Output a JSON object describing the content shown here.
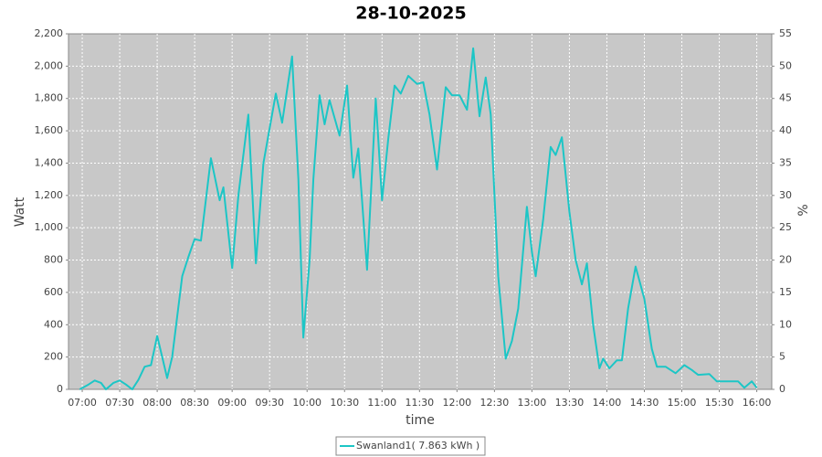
{
  "chart_data": {
    "type": "line",
    "title": "28-10-2025",
    "x_label": "time",
    "y_label": "Watt",
    "y2_label": "%",
    "xlim": [
      "06:49",
      "16:12"
    ],
    "xticks": [
      "07:00",
      "07:30",
      "08:00",
      "08:30",
      "09:00",
      "09:30",
      "10:00",
      "10:30",
      "11:00",
      "11:30",
      "12:00",
      "12:30",
      "13:00",
      "13:30",
      "14:00",
      "14:30",
      "15:00",
      "15:30",
      "16:00"
    ],
    "ylim": [
      0,
      2200
    ],
    "yticks": [
      0,
      200,
      400,
      600,
      800,
      {
        "value": 1000,
        "label": "1,000"
      },
      {
        "value": 1200,
        "label": "1,200"
      },
      {
        "value": 1400,
        "label": "1,400"
      },
      {
        "value": 1600,
        "label": "1,600"
      },
      {
        "value": 1800,
        "label": "1,800"
      },
      {
        "value": 2000,
        "label": "2,000"
      },
      {
        "value": 2200,
        "label": "2,200"
      }
    ],
    "y2lim": [
      0,
      55
    ],
    "y2ticks": [
      0,
      5,
      10,
      15,
      20,
      25,
      30,
      35,
      40,
      45,
      50,
      55
    ],
    "grid": true,
    "legend": "bottom",
    "x": [
      "06:58",
      "07:05",
      "07:10",
      "07:15",
      "07:19",
      "07:25",
      "07:30",
      "07:35",
      "07:40",
      "07:45",
      "07:50",
      "07:55",
      "08:00",
      "08:04",
      "08:08",
      "08:12",
      "08:16",
      "08:20",
      "08:25",
      "08:30",
      "08:35",
      "08:43",
      "08:50",
      "08:53",
      "09:00",
      "09:05",
      "09:13",
      "09:19",
      "09:25",
      "09:35",
      "09:40",
      "09:48",
      "09:53",
      "09:57",
      "10:02",
      "10:05",
      "10:10",
      "10:14",
      "10:18",
      "10:26",
      "10:32",
      "10:37",
      "10:41",
      "10:48",
      "10:55",
      "11:00",
      "11:05",
      "11:10",
      "11:15",
      "11:21",
      "11:28",
      "11:33",
      "11:38",
      "11:44",
      "11:51",
      "11:56",
      "12:02",
      "12:08",
      "12:13",
      "12:18",
      "12:23",
      "12:27",
      "12:33",
      "12:39",
      "12:44",
      "12:49",
      "12:56",
      "13:00",
      "13:03",
      "13:09",
      "13:15",
      "13:19",
      "13:24",
      "13:30",
      "13:35",
      "13:40",
      "13:44",
      "13:49",
      "13:54",
      "13:57",
      "14:02",
      "14:08",
      "14:12",
      "14:17",
      "14:23",
      "14:30",
      "14:36",
      "14:40",
      "14:47",
      "14:55",
      "15:02",
      "15:08",
      "15:13",
      "15:22",
      "15:28",
      "15:38",
      "15:45",
      "15:50",
      "15:56",
      "16:00"
    ],
    "series": [
      {
        "name": "Swanland1( 7.863 kWh )",
        "color": "#1cc6c6",
        "values": [
          0,
          30,
          55,
          40,
          0,
          40,
          55,
          30,
          0,
          60,
          140,
          150,
          330,
          200,
          70,
          200,
          450,
          700,
          820,
          930,
          920,
          1430,
          1170,
          1250,
          750,
          1200,
          1700,
          780,
          1400,
          1830,
          1650,
          2060,
          1300,
          320,
          800,
          1300,
          1820,
          1640,
          1790,
          1570,
          1880,
          1310,
          1490,
          740,
          1800,
          1170,
          1550,
          1880,
          1830,
          1940,
          1890,
          1900,
          1700,
          1360,
          1870,
          1820,
          1820,
          1730,
          2110,
          1690,
          1930,
          1700,
          700,
          190,
          300,
          500,
          1130,
          850,
          700,
          1050,
          1500,
          1450,
          1560,
          1100,
          800,
          650,
          780,
          400,
          130,
          190,
          130,
          180,
          180,
          500,
          760,
          560,
          250,
          140,
          140,
          100,
          150,
          120,
          90,
          95,
          50,
          50,
          50,
          10,
          50,
          10
        ]
      }
    ]
  }
}
